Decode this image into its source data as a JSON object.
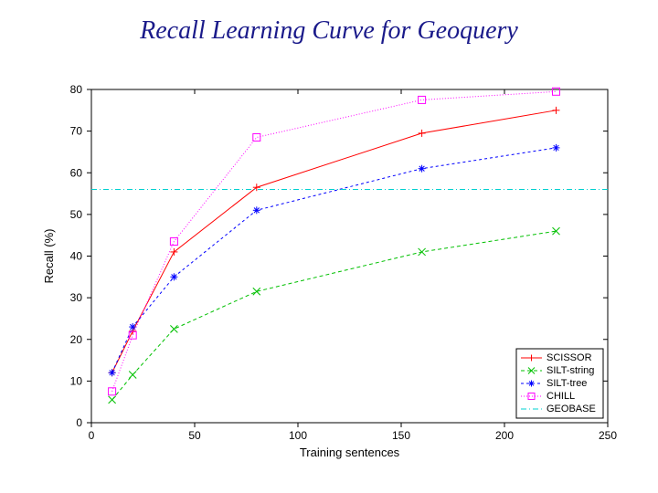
{
  "title": "Recall Learning Curve for Geoquery",
  "title_color": "#1a1a8a",
  "title_fontsize": 28,
  "chart": {
    "type": "line",
    "background_color": "#ffffff",
    "plot_border_color": "#000000",
    "xlabel": "Training sentences",
    "ylabel": "Recall (%)",
    "label_fontsize": 13,
    "tick_fontsize": 12,
    "xlim": [
      0,
      250
    ],
    "ylim": [
      0,
      80
    ],
    "xtick_step": 50,
    "ytick_step": 10,
    "xticks": [
      0,
      50,
      100,
      150,
      200,
      250
    ],
    "yticks": [
      0,
      10,
      20,
      30,
      40,
      50,
      60,
      70,
      80
    ],
    "tick_len": 5,
    "series": [
      {
        "name": "SCISSOR",
        "color": "#ff0000",
        "marker": "plus",
        "dash": "",
        "x": [
          10,
          20,
          40,
          80,
          160,
          225
        ],
        "y": [
          12,
          22,
          41,
          56.5,
          69.5,
          75
        ]
      },
      {
        "name": "SILT-string",
        "color": "#00c000",
        "marker": "x",
        "dash": "4 3",
        "x": [
          10,
          20,
          40,
          80,
          160,
          225
        ],
        "y": [
          5.5,
          11.5,
          22.5,
          31.5,
          41,
          46
        ]
      },
      {
        "name": "SILT-tree",
        "color": "#0000ff",
        "marker": "asterisk",
        "dash": "3 3",
        "x": [
          10,
          20,
          40,
          80,
          160,
          225
        ],
        "y": [
          12,
          23,
          35,
          51,
          61,
          66
        ]
      },
      {
        "name": "CHILL",
        "color": "#ff00ff",
        "marker": "square",
        "dash": "1 2",
        "x": [
          10,
          20,
          40,
          80,
          160,
          225
        ],
        "y": [
          7.5,
          21,
          43.5,
          68.5,
          77.5,
          79.5
        ]
      },
      {
        "name": "GEOBASE",
        "color": "#00d0d0",
        "marker": "none",
        "dash": "6 3 1 3",
        "x": [
          0,
          250
        ],
        "y": [
          56,
          56
        ]
      }
    ],
    "line_width": 1,
    "marker_size": 4,
    "legend": {
      "position": "bottom-right",
      "box_color": "#000000",
      "bg": "#ffffff",
      "fontsize": 11
    }
  }
}
